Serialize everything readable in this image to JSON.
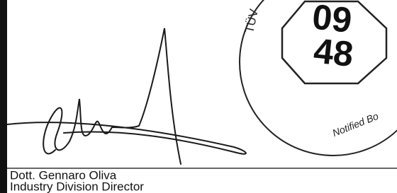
{
  "stamp": {
    "header": "TÜV",
    "number_top": "09",
    "number_bottom": "48",
    "footer": "Notified Bo"
  },
  "signatory": {
    "name": "Dott. Gennaro Oliva",
    "title": "Industry Division Director"
  }
}
